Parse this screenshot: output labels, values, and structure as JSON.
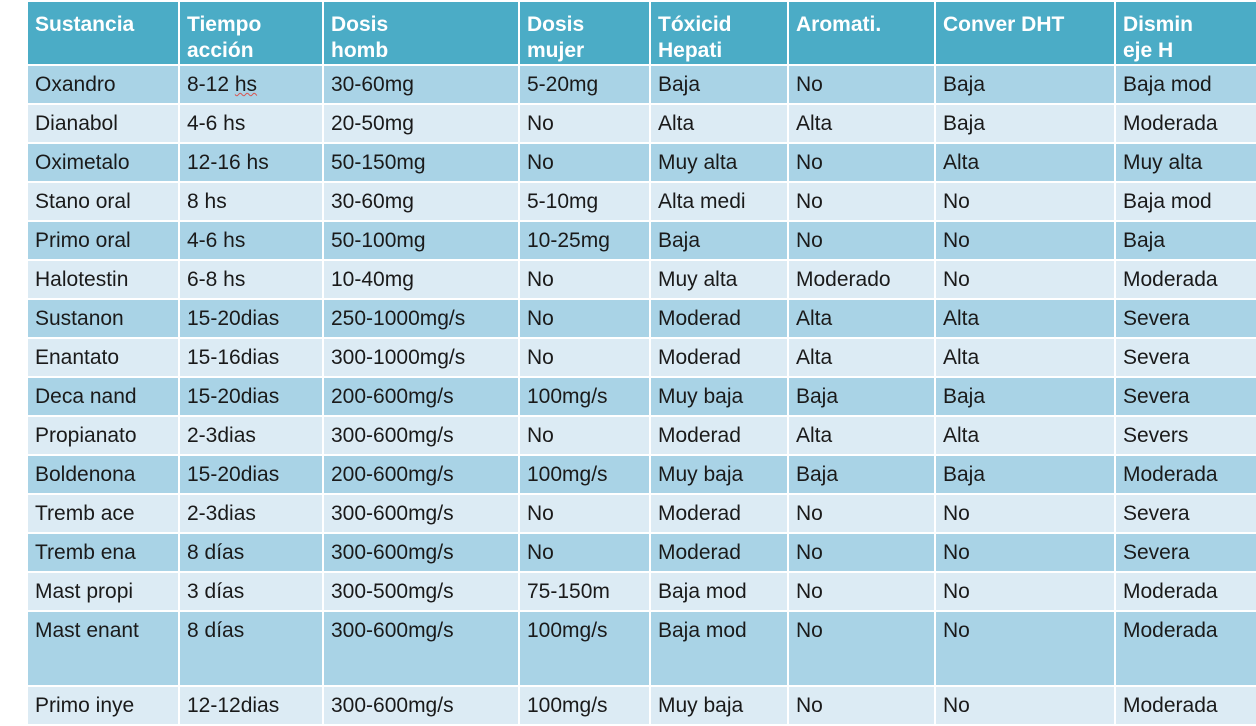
{
  "table": {
    "headers": [
      [
        "Sustancia",
        ""
      ],
      [
        "Tiempo",
        "acción"
      ],
      [
        "Dosis",
        "homb"
      ],
      [
        "Dosis",
        "mujer"
      ],
      [
        "Tóxicid",
        "Hepati"
      ],
      [
        "Aromati.",
        ""
      ],
      [
        "Conver DHT",
        ""
      ],
      [
        "Dismin",
        "eje H"
      ]
    ],
    "rows": [
      [
        "Oxandro",
        "8-12 hs",
        "30-60mg",
        "5-20mg",
        "Baja",
        "No",
        "Baja",
        "Baja mod"
      ],
      [
        "Dianabol",
        "4-6 hs",
        "20-50mg",
        "No",
        "Alta",
        "Alta",
        "Baja",
        "Moderada"
      ],
      [
        "Oximetalo",
        "12-16 hs",
        "50-150mg",
        "No",
        "Muy alta",
        "No",
        "Alta",
        "Muy alta"
      ],
      [
        "Stano oral",
        "8 hs",
        "30-60mg",
        "5-10mg",
        "Alta medi",
        "No",
        "No",
        "Baja mod"
      ],
      [
        "Primo oral",
        "4-6 hs",
        "50-100mg",
        "10-25mg",
        "Baja",
        "No",
        "No",
        "Baja"
      ],
      [
        "Halotestin",
        "6-8 hs",
        "10-40mg",
        "No",
        "Muy alta",
        "Moderado",
        "No",
        "Moderada"
      ],
      [
        "Sustanon",
        "15-20dias",
        "250-1000mg/s",
        "No",
        "Moderad",
        "Alta",
        "Alta",
        "Severa"
      ],
      [
        "Enantato",
        "15-16dias",
        "300-1000mg/s",
        "No",
        "Moderad",
        "Alta",
        "Alta",
        "Severa"
      ],
      [
        "Deca nand",
        "15-20dias",
        "200-600mg/s",
        "100mg/s",
        "Muy baja",
        "Baja",
        "Baja",
        "Severa"
      ],
      [
        "Propianato",
        "2-3dias",
        "300-600mg/s",
        "No",
        "Moderad",
        "Alta",
        "Alta",
        "Severs"
      ],
      [
        "Boldenona",
        "15-20dias",
        "200-600mg/s",
        "100mg/s",
        "Muy baja",
        "Baja",
        "Baja",
        "Moderada"
      ],
      [
        "Tremb ace",
        "2-3dias",
        "300-600mg/s",
        "No",
        "Moderad",
        "No",
        "No",
        "Severa"
      ],
      [
        "Tremb ena",
        "8 días",
        "300-600mg/s",
        "No",
        "Moderad",
        "No",
        "No",
        "Severa"
      ],
      [
        "Mast propi",
        "3 días",
        "300-500mg/s",
        "75-150m",
        "Baja mod",
        "No",
        "No",
        "Moderada"
      ],
      [
        "Mast enant",
        "8 días",
        "300-600mg/s",
        "100mg/s",
        "Baja mod",
        "No",
        "No",
        "Moderada"
      ],
      [
        "Primo inye",
        "12-12dias",
        "300-600mg/s",
        "100mg/s",
        "Muy baja",
        "No",
        "No",
        "Moderada"
      ]
    ]
  },
  "colors": {
    "header_bg": "#4bacc6",
    "row_dark": "#a9d3e6",
    "row_light": "#dcebf4"
  }
}
